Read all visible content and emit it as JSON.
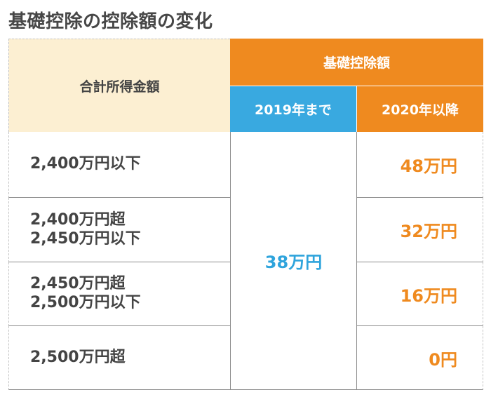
{
  "title": "基礎控除の控除額の変化",
  "table": {
    "income_header": "合計所得金額",
    "group_header": "基礎控除額",
    "col_2019": "2019年まで",
    "col_2020": "2020年以降",
    "value_2019": "38万円",
    "rows": [
      {
        "income_lines": [
          "2,400万円以下"
        ],
        "value_2020": "48万円"
      },
      {
        "income_lines": [
          "2,400万円超",
          "2,450万円以下"
        ],
        "value_2020": "32万円"
      },
      {
        "income_lines": [
          "2,450万円超",
          "2,500万円以下"
        ],
        "value_2020": "16万円"
      },
      {
        "income_lines": [
          "2,500万円超"
        ],
        "value_2020": "0円"
      }
    ]
  },
  "colors": {
    "header_orange": "#ef8a1f",
    "header_blue": "#39a9e0",
    "income_header_bg": "#fcefd2",
    "value_2019_text": "#2fa4dc",
    "value_2020_text": "#ef8a1f"
  }
}
